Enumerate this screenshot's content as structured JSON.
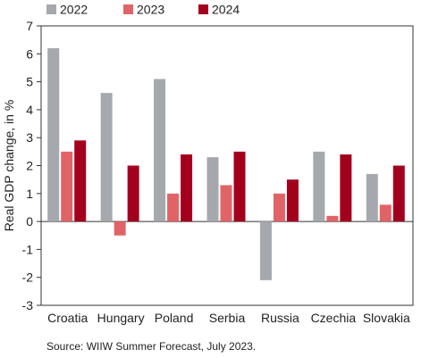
{
  "chart_data": {
    "type": "bar",
    "categories": [
      "Croatia",
      "Hungary",
      "Poland",
      "Serbia",
      "Russia",
      "Czechia",
      "Slovakia"
    ],
    "series": [
      {
        "name": "2022",
        "color": "#a5a9ae",
        "values": [
          6.2,
          4.6,
          5.1,
          2.3,
          -2.1,
          2.5,
          1.7
        ]
      },
      {
        "name": "2023",
        "color": "#e06467",
        "values": [
          2.5,
          -0.5,
          1.0,
          1.3,
          1.0,
          0.2,
          0.6
        ]
      },
      {
        "name": "2024",
        "color": "#a3001e",
        "values": [
          2.9,
          2.0,
          2.4,
          2.5,
          1.5,
          2.4,
          2.0
        ]
      }
    ],
    "ylabel": "Real GDP change, in %",
    "ylim": [
      -3,
      7
    ],
    "yticks": [
      "-3",
      "-2",
      "-1",
      "0",
      "1",
      "2",
      "3",
      "4",
      "5",
      "6",
      "7"
    ],
    "grid": false,
    "legend_position": "top",
    "source": "Source: WIIW Summer Forecast, July 2023."
  }
}
